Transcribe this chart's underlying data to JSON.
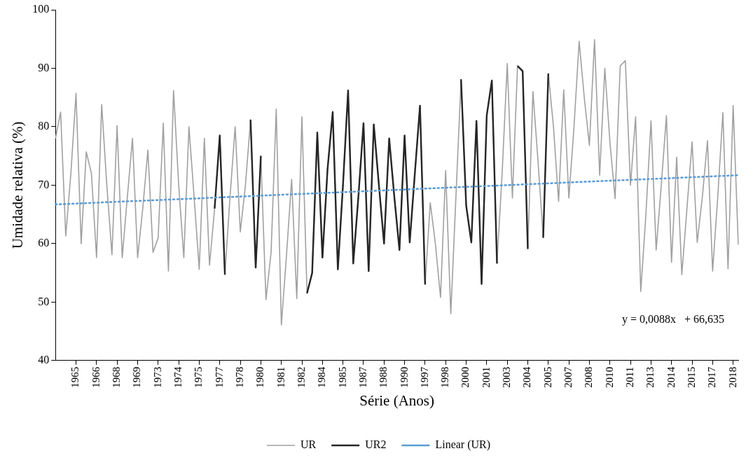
{
  "chart_data": {
    "type": "line",
    "xlabel": "Série (Anos)",
    "ylabel": "Umidade relativa (%)",
    "categories": [
      null,
      null,
      null,
      null,
      "1965",
      null,
      null,
      null,
      "1966",
      null,
      null,
      null,
      "1968",
      null,
      null,
      null,
      "1969",
      null,
      null,
      null,
      "1973",
      null,
      null,
      null,
      "1974",
      null,
      null,
      null,
      "1975",
      null,
      null,
      null,
      "1977",
      null,
      null,
      null,
      "1978",
      null,
      null,
      null,
      "1980",
      null,
      null,
      null,
      "1981",
      null,
      null,
      null,
      "1982",
      null,
      null,
      null,
      "1984",
      null,
      null,
      null,
      "1985",
      null,
      null,
      null,
      "1987",
      null,
      null,
      null,
      "1988",
      null,
      null,
      null,
      "1990",
      null,
      null,
      null,
      "1997",
      null,
      null,
      null,
      "1998",
      null,
      null,
      null,
      "2000",
      null,
      null,
      null,
      "2001",
      null,
      null,
      null,
      "2003",
      null,
      null,
      null,
      "2004",
      null,
      null,
      null,
      "2005",
      null,
      null,
      null,
      "2007",
      null,
      null,
      null,
      "2008",
      null,
      null,
      null,
      "2010",
      null,
      null,
      null,
      "2011",
      null,
      null,
      null,
      "2013",
      null,
      null,
      null,
      "2014",
      null,
      null,
      null,
      "2015",
      null,
      null,
      null,
      "2017",
      null,
      null,
      null,
      "2018",
      null
    ],
    "series": [
      {
        "name": "UR",
        "color": "#a0a0a0",
        "line_style": "solid",
        "values": [
          78,
          82.5,
          61.3,
          72,
          85.7,
          60,
          75.7,
          72,
          57.6,
          83.8,
          70,
          58.1,
          80.2,
          57.6,
          68,
          78,
          57.6,
          66,
          76,
          58.5,
          61,
          80.6,
          55.3,
          86.2,
          70,
          57.6,
          80,
          68,
          55.6,
          78,
          56.3,
          66,
          78.5,
          54.7,
          68,
          80,
          62,
          70,
          81.2,
          55.9,
          75,
          50.4,
          58.5,
          83,
          46.1,
          58,
          71,
          50.6,
          81.7,
          51.5,
          55,
          79,
          57.6,
          72.8,
          82.5,
          55.6,
          70,
          86.2,
          56.6,
          68,
          80.6,
          55.3,
          80.4,
          70,
          60,
          78,
          68,
          58.9,
          78.5,
          60.2,
          72,
          83.6,
          53,
          67,
          60,
          50.8,
          72.5,
          48,
          68,
          88.1,
          66.5,
          60.2,
          81,
          53.1,
          81.9,
          87.9,
          56.6,
          72,
          90.8,
          67.8,
          90.4,
          89.5,
          59.1,
          86,
          74,
          61,
          89.1,
          80,
          67.2,
          86.3,
          67.8,
          80,
          94.6,
          85,
          76.8,
          94.9,
          71.7,
          90,
          77.3,
          67.7,
          90.4,
          91.3,
          70,
          81.7,
          51.8,
          64.9,
          81,
          58.9,
          70,
          81.9,
          56.8,
          74.8,
          54.7,
          66,
          77.4,
          60.2,
          68,
          77.6,
          55.3,
          68,
          82.4,
          55.7,
          83.6,
          59.8
        ]
      },
      {
        "name": "UR2",
        "color": "#262626",
        "line_style": "solid",
        "values": [
          null,
          null,
          null,
          null,
          null,
          null,
          null,
          null,
          null,
          null,
          null,
          null,
          null,
          null,
          null,
          null,
          null,
          null,
          null,
          null,
          null,
          null,
          null,
          null,
          null,
          null,
          null,
          null,
          null,
          null,
          null,
          66,
          78.5,
          54.7,
          null,
          null,
          null,
          null,
          81.2,
          55.9,
          75,
          null,
          null,
          null,
          null,
          null,
          null,
          null,
          null,
          51.5,
          55,
          79,
          57.6,
          72.8,
          82.5,
          55.6,
          70,
          86.2,
          56.6,
          68,
          80.6,
          55.3,
          80.4,
          70,
          60,
          78,
          68,
          58.9,
          78.5,
          60.2,
          72,
          83.6,
          53,
          null,
          null,
          null,
          null,
          null,
          null,
          88.1,
          66.5,
          60.2,
          81,
          53.1,
          81.9,
          87.9,
          56.6,
          null,
          null,
          null,
          90.4,
          89.5,
          59.1,
          null,
          null,
          61,
          89.1,
          null,
          null,
          null,
          null,
          null,
          null,
          null,
          null,
          null,
          null,
          null,
          null,
          null,
          null,
          null,
          null,
          null,
          null,
          null,
          null,
          null,
          null,
          null,
          null,
          null,
          null,
          null,
          null,
          null,
          null,
          null,
          null,
          null,
          null,
          null,
          null,
          null
        ]
      },
      {
        "name": "Linear (UR)",
        "type": "line",
        "color": "#5b9bd5",
        "line_style": "dotted",
        "values": [
          66.7,
          null,
          null,
          null,
          null,
          null,
          null,
          null,
          null,
          null,
          null,
          null,
          null,
          null,
          null,
          null,
          null,
          null,
          null,
          null,
          null,
          null,
          null,
          null,
          null,
          null,
          null,
          null,
          null,
          null,
          null,
          null,
          null,
          null,
          null,
          null,
          null,
          null,
          null,
          null,
          null,
          null,
          null,
          null,
          null,
          null,
          null,
          null,
          null,
          null,
          null,
          null,
          null,
          null,
          null,
          null,
          null,
          null,
          null,
          null,
          null,
          null,
          null,
          null,
          null,
          null,
          null,
          null,
          null,
          null,
          null,
          null,
          null,
          null,
          null,
          null,
          null,
          null,
          null,
          null,
          null,
          null,
          null,
          null,
          null,
          null,
          null,
          null,
          null,
          null,
          null,
          null,
          null,
          null,
          null,
          null,
          null,
          null,
          null,
          null,
          null,
          null,
          null,
          null,
          null,
          null,
          null,
          null,
          null,
          null,
          null,
          null,
          null,
          null,
          null,
          null,
          null,
          null,
          null,
          null,
          null,
          null,
          null,
          null,
          null,
          null,
          null,
          null,
          null,
          null,
          null,
          null,
          null,
          71.7
        ]
      }
    ],
    "ylim": [
      40,
      100
    ],
    "yticks": [
      40,
      50,
      60,
      70,
      80,
      90,
      100
    ],
    "grid": false,
    "legend": "bottom",
    "marker": "none",
    "annotations": [
      "y = 0,0088x   + 66,635"
    ]
  }
}
